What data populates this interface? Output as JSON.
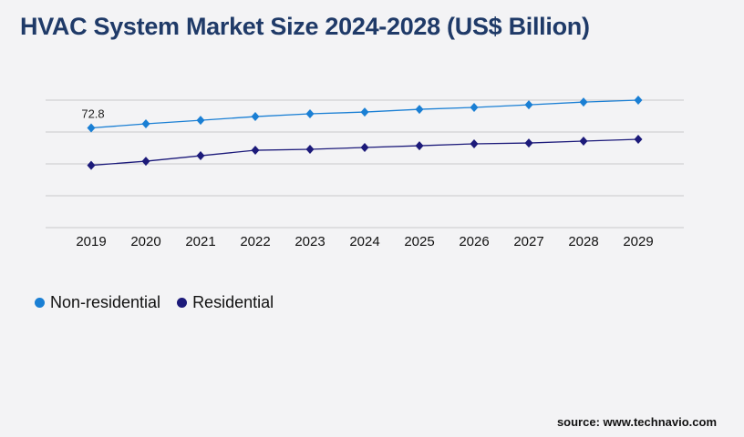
{
  "chart_data": {
    "type": "line",
    "title": "HVAC System Market Size 2024-2028 (US$ Billion)",
    "categories": [
      "2019",
      "2020",
      "2021",
      "2022",
      "2023",
      "2024",
      "2025",
      "2026",
      "2027",
      "2028",
      "2029"
    ],
    "series": [
      {
        "name": "Non-residential",
        "color": "#1a7fd4",
        "values": [
          72.8,
          75.8,
          78.4,
          81.1,
          83.1,
          84.4,
          86.4,
          87.8,
          89.7,
          91.7,
          93.1
        ]
      },
      {
        "name": "Residential",
        "color": "#1c1a7a",
        "values": [
          45.5,
          48.5,
          52.5,
          56.5,
          57.2,
          58.5,
          59.8,
          61.2,
          61.8,
          63.2,
          64.5
        ]
      }
    ],
    "data_labels": [
      {
        "series": 0,
        "index": 0,
        "text": "72.8"
      }
    ],
    "ylim": [
      0,
      93.1
    ],
    "grid": true,
    "legend": "bottom-left"
  },
  "source": "source: www.technavio.com"
}
